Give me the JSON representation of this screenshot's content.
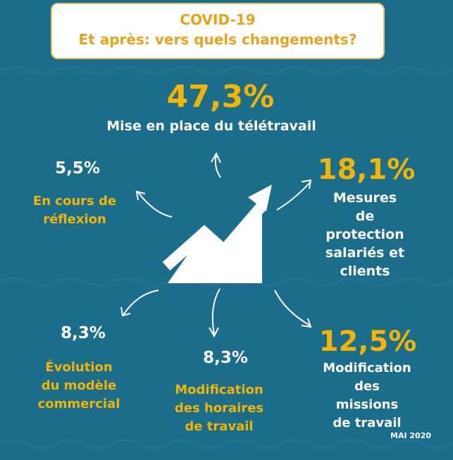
{
  "header": {
    "title": "COVID-19",
    "subtitle": "Et après: vers quels changements?"
  },
  "items": [
    {
      "value": "47,3%",
      "label": "Mise en place du télétravail"
    },
    {
      "value": "5,5%",
      "label": "En cours de\nréflexion"
    },
    {
      "value": "18,1%",
      "label": "Mesures\nde protection\nsalariés et clients"
    },
    {
      "value": "8,3%",
      "label": "Évolution\ndu modèle\ncommercial"
    },
    {
      "value": "8,3%",
      "label": "Modification\ndes horaires\nde travail"
    },
    {
      "value": "12,5%",
      "label": "Modification\ndes missions\nde travail"
    }
  ],
  "footer": "MAI 2020"
}
